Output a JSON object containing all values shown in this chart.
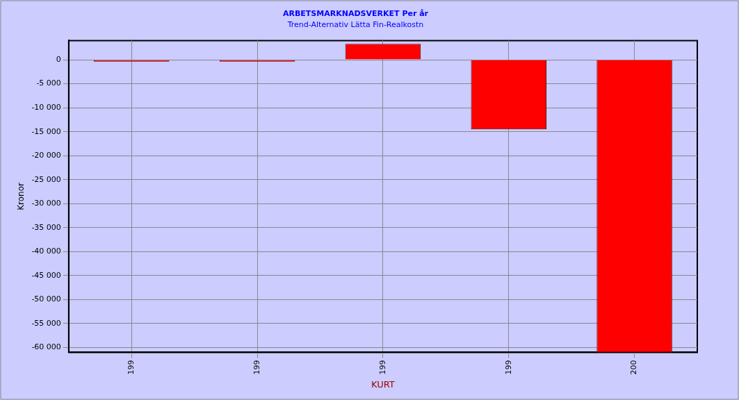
{
  "chart_data": {
    "type": "bar",
    "title": "ARBETSMARKNADSVERKET Per år",
    "subtitle": "Trend-Alternativ Lätta Fin-Realkostn",
    "xlabel": "KURT",
    "ylabel": "Kronor",
    "categories": [
      "199",
      "199",
      "199",
      "199",
      "200"
    ],
    "series": [
      {
        "color": "#ff0000",
        "values": [
          -400,
          -400,
          3300,
          -14500,
          -61000
        ]
      }
    ],
    "ylim": [
      -61000,
      4000
    ],
    "yticks": [
      {
        "value": 0,
        "label": "0"
      },
      {
        "value": -5000,
        "label": "-5 000"
      },
      {
        "value": -10000,
        "label": "-10 000"
      },
      {
        "value": -15000,
        "label": "-15 000"
      },
      {
        "value": -20000,
        "label": "-20 000"
      },
      {
        "value": -25000,
        "label": "-25 000"
      },
      {
        "value": -30000,
        "label": "-30 000"
      },
      {
        "value": -35000,
        "label": "-35 000"
      },
      {
        "value": -40000,
        "label": "-40 000"
      },
      {
        "value": -45000,
        "label": "-45 000"
      },
      {
        "value": -50000,
        "label": "-50 000"
      },
      {
        "value": -55000,
        "label": "-55 000"
      },
      {
        "value": -60000,
        "label": "-60 000"
      }
    ],
    "grid": true,
    "legend": false
  }
}
